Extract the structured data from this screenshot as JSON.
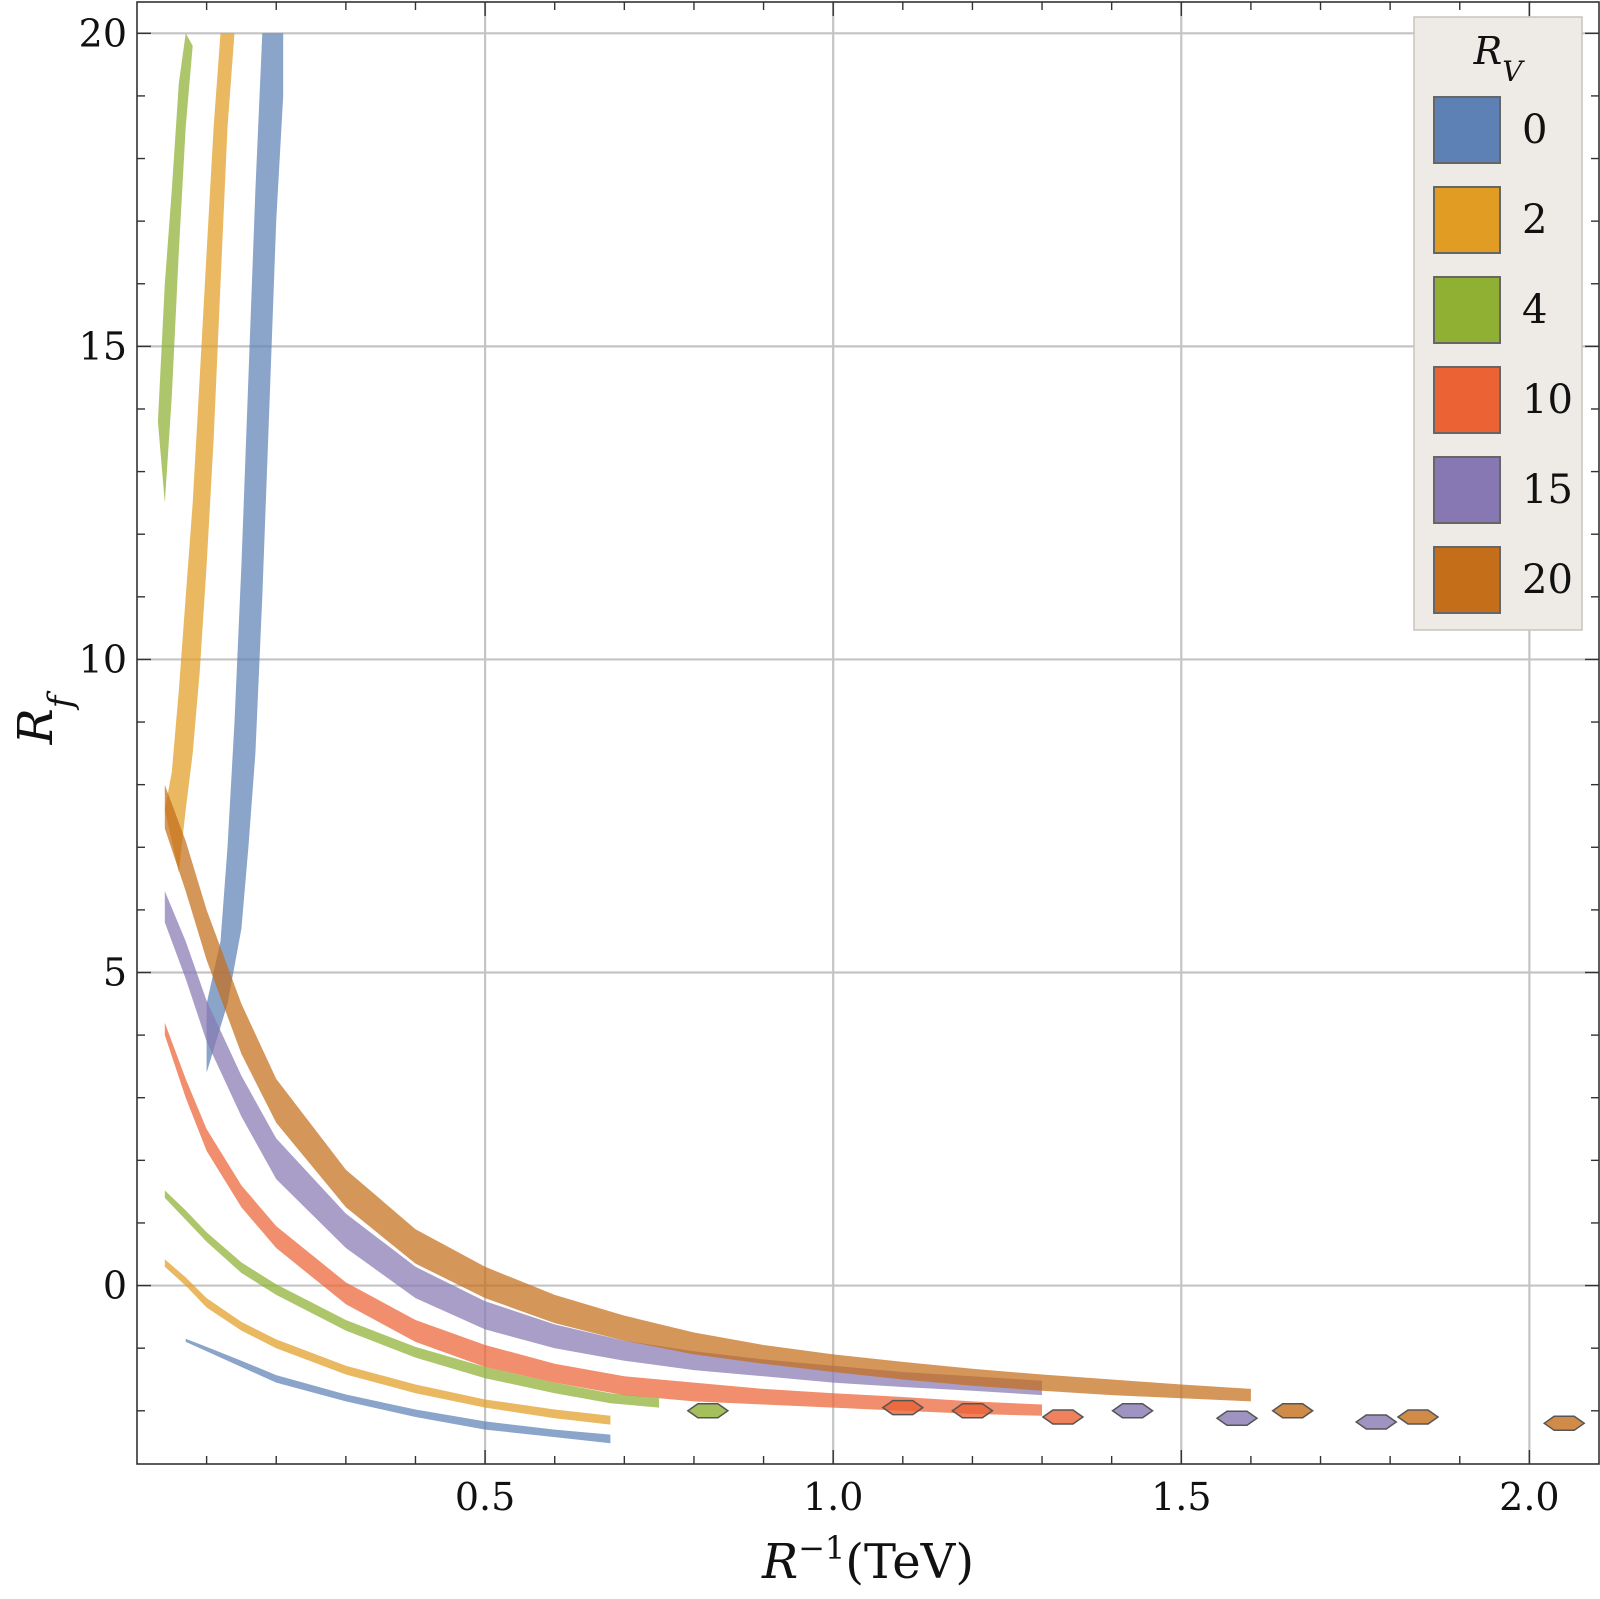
{
  "chart_data": {
    "type": "area",
    "title": "",
    "xlabel_main": "R",
    "xlabel_sup": "−1",
    "xlabel_unit": "(TeV)",
    "ylabel_main": "R",
    "ylabel_sub": "f",
    "xlim": [
      0.0,
      2.1
    ],
    "ylim": [
      -2.85,
      20.5
    ],
    "xticks": [
      0.5,
      1.0,
      1.5,
      2.0
    ],
    "xtick_labels": [
      "0.5",
      "1.0",
      "1.5",
      "2.0"
    ],
    "yticks": [
      0,
      5,
      10,
      15,
      20
    ],
    "ytick_labels": [
      "0",
      "5",
      "10",
      "15",
      "20"
    ],
    "grid": true,
    "legend": {
      "title_main": "R",
      "title_sub": "V",
      "placement": "top-right",
      "entries": [
        {
          "label": "0",
          "color": "#5e81b5"
        },
        {
          "label": "2",
          "color": "#e19c24"
        },
        {
          "label": "4",
          "color": "#8fb032"
        },
        {
          "label": "10",
          "color": "#eb6235"
        },
        {
          "label": "15",
          "color": "#8778b3"
        },
        {
          "label": "20",
          "color": "#c56e1a"
        }
      ]
    },
    "series": [
      {
        "name": "0",
        "color": "#5e81b5",
        "lower": [
          [
            0.07,
            -0.9
          ],
          [
            0.1,
            -1.05
          ],
          [
            0.15,
            -1.3
          ],
          [
            0.2,
            -1.55
          ],
          [
            0.3,
            -1.85
          ],
          [
            0.4,
            -2.1
          ],
          [
            0.5,
            -2.3
          ],
          [
            0.6,
            -2.42
          ],
          [
            0.68,
            -2.52
          ]
        ],
        "upper": [
          [
            0.07,
            -0.85
          ],
          [
            0.1,
            -0.98
          ],
          [
            0.15,
            -1.2
          ],
          [
            0.2,
            -1.43
          ],
          [
            0.3,
            -1.74
          ],
          [
            0.4,
            -1.98
          ],
          [
            0.5,
            -2.17
          ],
          [
            0.6,
            -2.3
          ],
          [
            0.68,
            -2.38
          ]
        ],
        "vlower": [
          [
            0.1,
            3.4
          ],
          [
            0.13,
            4.5
          ],
          [
            0.15,
            5.7
          ],
          [
            0.16,
            7.0
          ],
          [
            0.17,
            8.5
          ],
          [
            0.18,
            11
          ],
          [
            0.19,
            14.0
          ],
          [
            0.2,
            17
          ],
          [
            0.21,
            19.0
          ]
        ],
        "vupper": [
          [
            0.1,
            4.5
          ],
          [
            0.12,
            5.5
          ],
          [
            0.13,
            7.0
          ],
          [
            0.14,
            9.0
          ],
          [
            0.15,
            11.5
          ],
          [
            0.16,
            14.5
          ],
          [
            0.17,
            17.5
          ],
          [
            0.18,
            20
          ],
          [
            0.21,
            20
          ]
        ]
      },
      {
        "name": "2",
        "color": "#e19c24",
        "lower": [
          [
            0.04,
            0.3
          ],
          [
            0.07,
            0.0
          ],
          [
            0.1,
            -0.35
          ],
          [
            0.15,
            -0.72
          ],
          [
            0.2,
            -1.0
          ],
          [
            0.3,
            -1.42
          ],
          [
            0.4,
            -1.72
          ],
          [
            0.5,
            -1.95
          ],
          [
            0.6,
            -2.12
          ],
          [
            0.68,
            -2.22
          ]
        ],
        "upper": [
          [
            0.04,
            0.42
          ],
          [
            0.07,
            0.13
          ],
          [
            0.1,
            -0.2
          ],
          [
            0.15,
            -0.58
          ],
          [
            0.2,
            -0.86
          ],
          [
            0.3,
            -1.28
          ],
          [
            0.4,
            -1.58
          ],
          [
            0.5,
            -1.82
          ],
          [
            0.6,
            -1.98
          ],
          [
            0.68,
            -2.08
          ]
        ],
        "vlower": [
          [
            0.06,
            6.6
          ],
          [
            0.07,
            7.6
          ],
          [
            0.08,
            8.5
          ],
          [
            0.09,
            9.8
          ],
          [
            0.1,
            11.5
          ],
          [
            0.11,
            13.5
          ],
          [
            0.12,
            16.0
          ],
          [
            0.13,
            18.5
          ],
          [
            0.14,
            20
          ]
        ],
        "vupper": [
          [
            0.04,
            7.6
          ],
          [
            0.05,
            8.2
          ],
          [
            0.06,
            9.5
          ],
          [
            0.07,
            11.0
          ],
          [
            0.08,
            12.5
          ],
          [
            0.09,
            14.5
          ],
          [
            0.1,
            16.5
          ],
          [
            0.11,
            18.5
          ],
          [
            0.12,
            20
          ]
        ]
      },
      {
        "name": "4",
        "color": "#8fb032",
        "lower": [
          [
            0.04,
            1.4
          ],
          [
            0.07,
            1.05
          ],
          [
            0.1,
            0.7
          ],
          [
            0.15,
            0.2
          ],
          [
            0.2,
            -0.15
          ],
          [
            0.3,
            -0.72
          ],
          [
            0.4,
            -1.15
          ],
          [
            0.5,
            -1.48
          ],
          [
            0.6,
            -1.72
          ],
          [
            0.68,
            -1.88
          ],
          [
            0.75,
            -1.95
          ]
        ],
        "upper": [
          [
            0.04,
            1.52
          ],
          [
            0.07,
            1.2
          ],
          [
            0.1,
            0.85
          ],
          [
            0.15,
            0.37
          ],
          [
            0.2,
            0.02
          ],
          [
            0.3,
            -0.55
          ],
          [
            0.4,
            -0.98
          ],
          [
            0.5,
            -1.3
          ],
          [
            0.6,
            -1.55
          ],
          [
            0.68,
            -1.72
          ],
          [
            0.75,
            -1.8
          ]
        ],
        "vlower": [
          [
            0.04,
            12.5
          ],
          [
            0.05,
            14.2
          ],
          [
            0.06,
            16.5
          ],
          [
            0.07,
            18.5
          ],
          [
            0.08,
            19.8
          ]
        ],
        "vupper": [
          [
            0.03,
            13.8
          ],
          [
            0.04,
            16.0
          ],
          [
            0.05,
            17.5
          ],
          [
            0.06,
            19.2
          ],
          [
            0.07,
            20
          ]
        ]
      },
      {
        "name": "10",
        "color": "#eb6235",
        "lower": [
          [
            0.04,
            4.0
          ],
          [
            0.07,
            3.0
          ],
          [
            0.1,
            2.15
          ],
          [
            0.15,
            1.25
          ],
          [
            0.2,
            0.6
          ],
          [
            0.3,
            -0.3
          ],
          [
            0.4,
            -0.9
          ],
          [
            0.5,
            -1.3
          ],
          [
            0.6,
            -1.55
          ],
          [
            0.7,
            -1.75
          ],
          [
            0.8,
            -1.85
          ],
          [
            0.9,
            -1.9
          ],
          [
            1.0,
            -1.95
          ],
          [
            1.1,
            -2.0
          ],
          [
            1.2,
            -2.05
          ],
          [
            1.3,
            -2.08
          ]
        ],
        "upper": [
          [
            0.04,
            4.2
          ],
          [
            0.07,
            3.3
          ],
          [
            0.1,
            2.5
          ],
          [
            0.15,
            1.6
          ],
          [
            0.2,
            0.95
          ],
          [
            0.3,
            0.05
          ],
          [
            0.4,
            -0.55
          ],
          [
            0.5,
            -0.95
          ],
          [
            0.6,
            -1.25
          ],
          [
            0.7,
            -1.45
          ],
          [
            0.8,
            -1.55
          ],
          [
            0.9,
            -1.65
          ],
          [
            1.0,
            -1.72
          ],
          [
            1.1,
            -1.78
          ],
          [
            1.2,
            -1.85
          ],
          [
            1.3,
            -1.9
          ]
        ]
      },
      {
        "name": "15",
        "color": "#8778b3",
        "lower": [
          [
            0.04,
            5.8
          ],
          [
            0.07,
            4.9
          ],
          [
            0.1,
            3.9
          ],
          [
            0.15,
            2.7
          ],
          [
            0.2,
            1.7
          ],
          [
            0.3,
            0.6
          ],
          [
            0.4,
            -0.2
          ],
          [
            0.5,
            -0.7
          ],
          [
            0.6,
            -1.0
          ],
          [
            0.7,
            -1.2
          ],
          [
            0.8,
            -1.35
          ],
          [
            0.9,
            -1.45
          ],
          [
            1.0,
            -1.55
          ],
          [
            1.1,
            -1.62
          ],
          [
            1.2,
            -1.68
          ],
          [
            1.3,
            -1.75
          ]
        ],
        "upper": [
          [
            0.04,
            6.3
          ],
          [
            0.07,
            5.5
          ],
          [
            0.1,
            4.55
          ],
          [
            0.15,
            3.35
          ],
          [
            0.2,
            2.35
          ],
          [
            0.3,
            1.15
          ],
          [
            0.4,
            0.3
          ],
          [
            0.5,
            -0.25
          ],
          [
            0.6,
            -0.62
          ],
          [
            0.7,
            -0.88
          ],
          [
            0.8,
            -1.05
          ],
          [
            0.9,
            -1.18
          ],
          [
            1.0,
            -1.28
          ],
          [
            1.1,
            -1.38
          ],
          [
            1.2,
            -1.45
          ],
          [
            1.3,
            -1.52
          ]
        ]
      },
      {
        "name": "20",
        "color": "#c56e1a",
        "lower": [
          [
            0.04,
            7.3
          ],
          [
            0.07,
            6.3
          ],
          [
            0.1,
            5.2
          ],
          [
            0.15,
            3.7
          ],
          [
            0.2,
            2.6
          ],
          [
            0.3,
            1.25
          ],
          [
            0.4,
            0.35
          ],
          [
            0.5,
            -0.2
          ],
          [
            0.6,
            -0.6
          ],
          [
            0.7,
            -0.88
          ],
          [
            0.8,
            -1.1
          ],
          [
            0.9,
            -1.25
          ],
          [
            1.0,
            -1.38
          ],
          [
            1.1,
            -1.5
          ],
          [
            1.2,
            -1.6
          ],
          [
            1.3,
            -1.68
          ],
          [
            1.4,
            -1.75
          ],
          [
            1.5,
            -1.8
          ],
          [
            1.6,
            -1.85
          ]
        ],
        "upper": [
          [
            0.04,
            8.0
          ],
          [
            0.07,
            7.1
          ],
          [
            0.1,
            6.0
          ],
          [
            0.15,
            4.5
          ],
          [
            0.2,
            3.3
          ],
          [
            0.3,
            1.85
          ],
          [
            0.4,
            0.9
          ],
          [
            0.5,
            0.3
          ],
          [
            0.6,
            -0.15
          ],
          [
            0.7,
            -0.48
          ],
          [
            0.8,
            -0.75
          ],
          [
            0.9,
            -0.95
          ],
          [
            1.0,
            -1.1
          ],
          [
            1.1,
            -1.22
          ],
          [
            1.2,
            -1.33
          ],
          [
            1.3,
            -1.42
          ],
          [
            1.4,
            -1.5
          ],
          [
            1.5,
            -1.58
          ],
          [
            1.6,
            -1.65
          ]
        ]
      }
    ],
    "islands": [
      {
        "series": "4",
        "x": 0.82,
        "y": -2.0
      },
      {
        "series": "10",
        "x": 1.1,
        "y": -1.95
      },
      {
        "series": "10",
        "x": 1.2,
        "y": -2.0
      },
      {
        "series": "10",
        "x": 1.33,
        "y": -2.1
      },
      {
        "series": "15",
        "x": 1.43,
        "y": -2.0
      },
      {
        "series": "15",
        "x": 1.58,
        "y": -2.12
      },
      {
        "series": "15",
        "x": 1.78,
        "y": -2.18
      },
      {
        "series": "20",
        "x": 1.66,
        "y": -2.0
      },
      {
        "series": "20",
        "x": 1.84,
        "y": -2.1
      },
      {
        "series": "20",
        "x": 2.05,
        "y": -2.2
      }
    ]
  }
}
